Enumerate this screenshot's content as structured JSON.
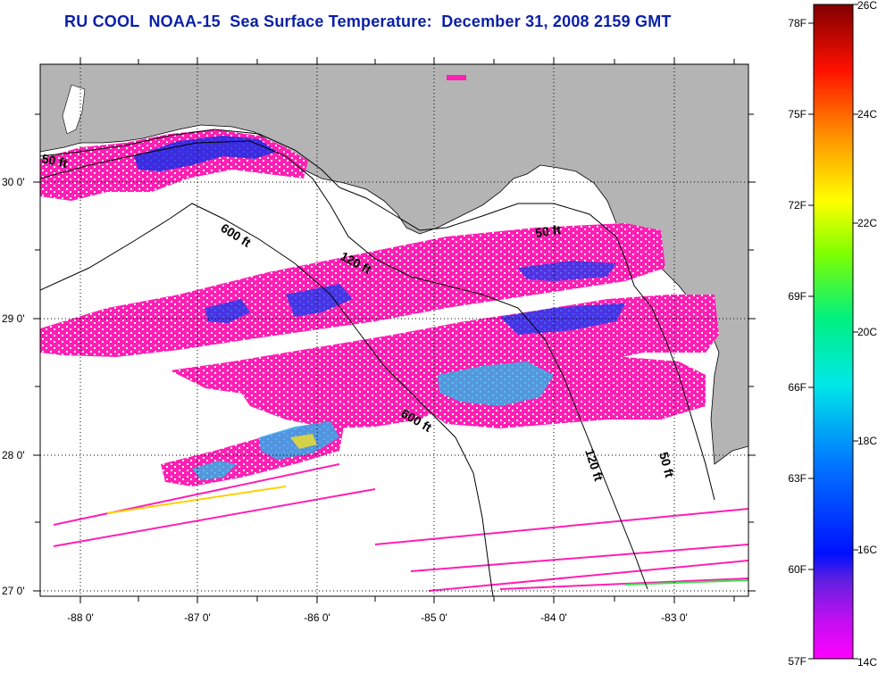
{
  "header": {
    "title": "RU COOL  NOAA-15  Sea Surface Temperature:  December 31, 2008 2159 GMT"
  },
  "axes": {
    "longitude_ticks": [
      "-88 0'",
      "-87 0'",
      "-86 0'",
      "-85 0'",
      "-84 0'",
      "-83 0'"
    ],
    "latitude_ticks": [
      "30 0'",
      "29 0'",
      "28 0'",
      "27 0'"
    ]
  },
  "contours": {
    "labels": [
      "50 ft",
      "600 ft",
      "120 ft",
      "50 ft",
      "600 ft",
      "120 ft",
      "50 ft"
    ]
  },
  "colorbar": {
    "fahrenheit": [
      "78F",
      "75F",
      "72F",
      "69F",
      "66F",
      "63F",
      "60F",
      "57F"
    ],
    "celsius": [
      "26C",
      "24C",
      "22C",
      "20C",
      "18C",
      "16C",
      "14C"
    ]
  },
  "colors": {
    "title": "#0a1fa8",
    "land": "#b4b4b4",
    "water_nodata": "#ffffff",
    "sst_cold": "#ff1fb4",
    "sst_cool": "#1428e6"
  }
}
